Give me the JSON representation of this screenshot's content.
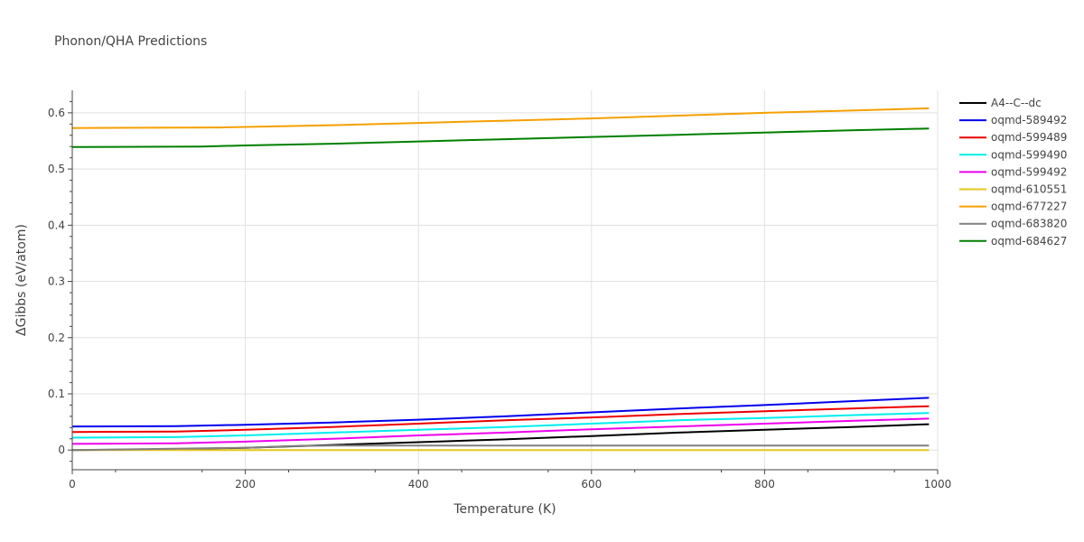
{
  "chart_data": {
    "type": "line",
    "title": "Phonon/QHA Predictions",
    "xlabel": "Temperature (K)",
    "ylabel": "ΔGibbs (eV/atom)",
    "xlim": [
      0,
      1000
    ],
    "ylim": [
      -0.035,
      0.64
    ],
    "xticks": [
      0,
      200,
      400,
      600,
      800,
      1000
    ],
    "xtick_labels": [
      "0",
      "200",
      "400",
      "600",
      "800",
      "1000"
    ],
    "yticks": [
      0,
      0.1,
      0.2,
      0.3,
      0.4,
      0.5,
      0.6
    ],
    "ytick_labels": [
      "0",
      "0.1",
      "0.2",
      "0.3",
      "0.4",
      "0.5",
      "0.6"
    ],
    "grid": true,
    "legend_position": "top-right",
    "series": [
      {
        "name": "A4--C--dc",
        "color": "#000000",
        "x": [
          0,
          120,
          200,
          300,
          400,
          500,
          600,
          700,
          800,
          900,
          990
        ],
        "y": [
          0.0,
          0.0015,
          0.004,
          0.009,
          0.014,
          0.019,
          0.025,
          0.031,
          0.036,
          0.041,
          0.046
        ]
      },
      {
        "name": "oqmd-589492",
        "color": "#0000ee",
        "x": [
          0,
          120,
          200,
          300,
          400,
          500,
          600,
          700,
          800,
          900,
          990
        ],
        "y": [
          0.042,
          0.0425,
          0.045,
          0.049,
          0.054,
          0.06,
          0.067,
          0.074,
          0.08,
          0.087,
          0.093
        ]
      },
      {
        "name": "oqmd-599489",
        "color": "#ee0000",
        "x": [
          0,
          120,
          200,
          300,
          400,
          500,
          600,
          700,
          800,
          900,
          990
        ],
        "y": [
          0.032,
          0.033,
          0.036,
          0.041,
          0.047,
          0.053,
          0.058,
          0.064,
          0.069,
          0.074,
          0.078
        ]
      },
      {
        "name": "oqmd-599490",
        "color": "#00eeee",
        "x": [
          0,
          120,
          200,
          300,
          400,
          500,
          600,
          700,
          800,
          900,
          990
        ],
        "y": [
          0.022,
          0.023,
          0.026,
          0.031,
          0.036,
          0.041,
          0.047,
          0.053,
          0.057,
          0.062,
          0.066
        ]
      },
      {
        "name": "oqmd-599492",
        "color": "#ee00ee",
        "x": [
          0,
          120,
          200,
          300,
          400,
          500,
          600,
          700,
          800,
          900,
          990
        ],
        "y": [
          0.011,
          0.012,
          0.015,
          0.02,
          0.026,
          0.031,
          0.037,
          0.042,
          0.047,
          0.052,
          0.056
        ]
      },
      {
        "name": "oqmd-610551",
        "color": "#e6c619",
        "x": [
          0,
          200,
          400,
          600,
          800,
          990
        ],
        "y": [
          0.0,
          0.0,
          0.0,
          0.0,
          0.0,
          0.0
        ]
      },
      {
        "name": "oqmd-677227",
        "color": "#f5a000",
        "x": [
          0,
          170,
          300,
          400,
          500,
          600,
          700,
          800,
          900,
          990
        ],
        "y": [
          0.573,
          0.574,
          0.578,
          0.582,
          0.586,
          0.59,
          0.595,
          0.6,
          0.604,
          0.608
        ]
      },
      {
        "name": "oqmd-683820",
        "color": "#808080",
        "x": [
          0,
          200,
          250,
          300,
          400,
          600,
          800,
          990
        ],
        "y": [
          0.0,
          0.004,
          0.007,
          0.008,
          0.008,
          0.008,
          0.008,
          0.008
        ]
      },
      {
        "name": "oqmd-684627",
        "color": "#008000",
        "x": [
          0,
          150,
          200,
          300,
          400,
          500,
          600,
          700,
          800,
          900,
          990
        ],
        "y": [
          0.539,
          0.54,
          0.542,
          0.545,
          0.549,
          0.553,
          0.557,
          0.561,
          0.565,
          0.569,
          0.572
        ]
      }
    ]
  }
}
